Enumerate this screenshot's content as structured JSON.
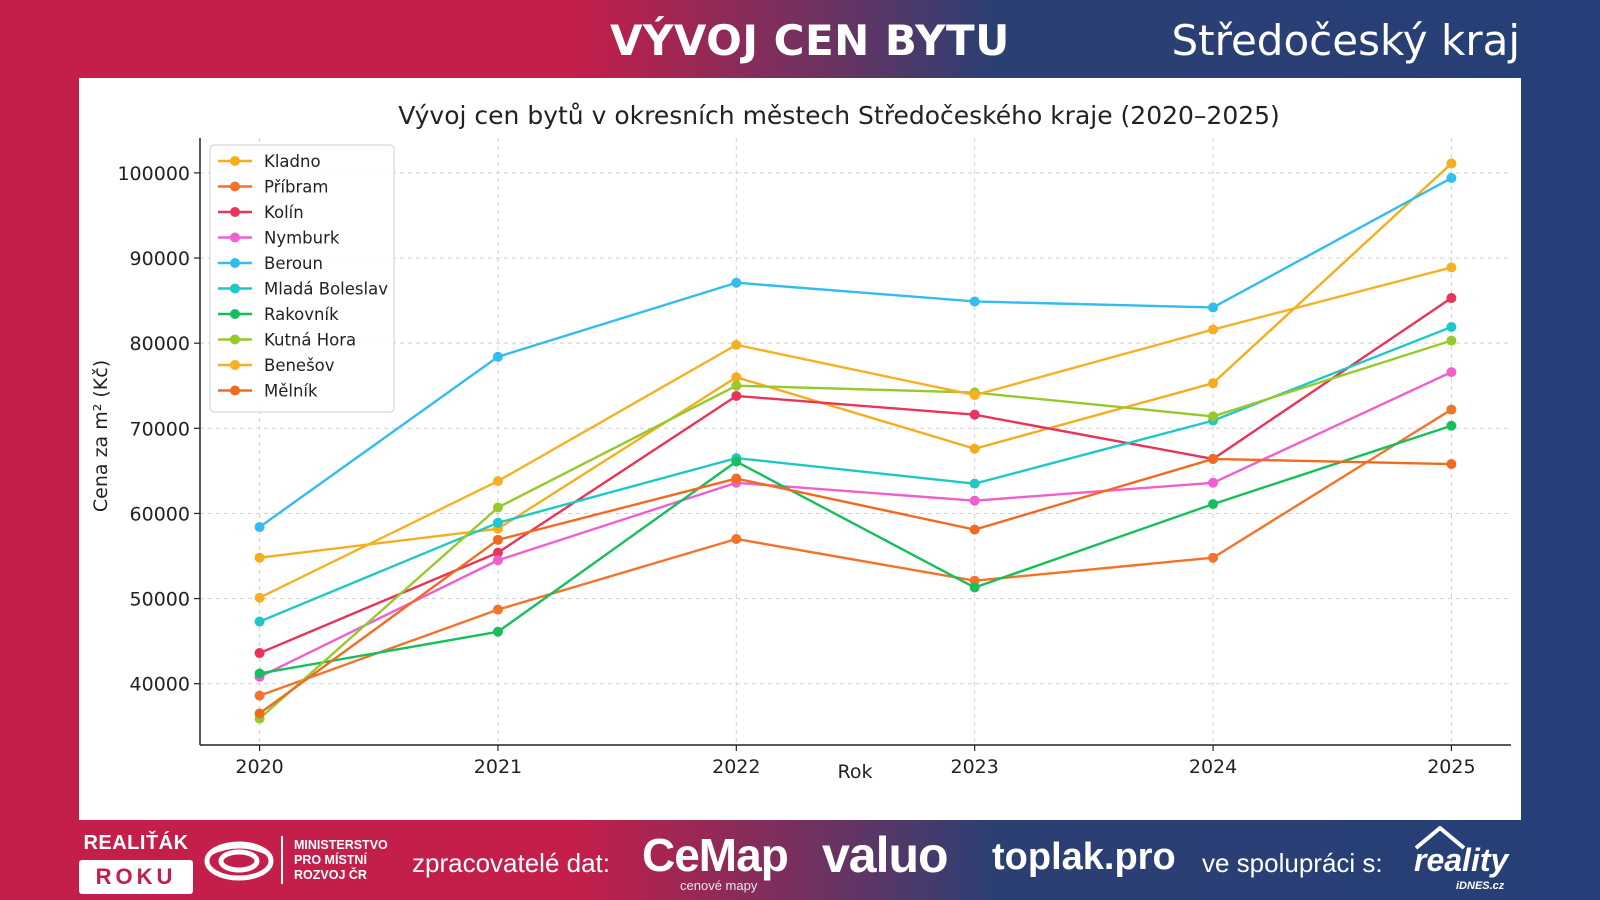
{
  "header": {
    "title": "VÝVOJ CEN BYTU",
    "region": "Středočeský kraj"
  },
  "footer": {
    "badge_top": "REALIŤÁK",
    "badge_bottom": "ROKU",
    "ministry_lines": [
      "MINISTERSTVO",
      "PRO MÍSTNÍ",
      "ROZVOJ ČR"
    ],
    "processors_label": "zpracovatelé dat:",
    "cemap": "CeMap",
    "cemap_sub": "cenové mapy",
    "valuo": "valuo",
    "toplak": "toplak.pro",
    "cooperation_label": "ve spolupráci s:",
    "reality": "reality",
    "idnes": "iDNES.cz"
  },
  "chart_data": {
    "type": "line",
    "title": "Vývoj cen bytů v okresních městech Středočeského kraje (2020–2025)",
    "xlabel": "Rok",
    "ylabel": "Cena za m² (Kč)",
    "x": [
      2020,
      2021,
      2022,
      2023,
      2024,
      2025
    ],
    "xticks": [
      "2020",
      "2021",
      "2022",
      "2023",
      "2024",
      "2025"
    ],
    "yticks": [
      40000,
      50000,
      60000,
      70000,
      80000,
      90000,
      100000
    ],
    "ytick_labels": [
      "40000",
      "50000",
      "60000",
      "70000",
      "80000",
      "90000",
      "100000"
    ],
    "xlim": [
      2019.75,
      2025.25
    ],
    "ylim": [
      32800,
      104100
    ],
    "grid": true,
    "legend_position": "top-left",
    "series": [
      {
        "name": "Kladno",
        "color": "#f5ad1e",
        "values": [
          54800,
          58200,
          76000,
          67600,
          75300,
          101100
        ]
      },
      {
        "name": "Příbram",
        "color": "#f27329",
        "values": [
          38600,
          48700,
          57000,
          52100,
          54800,
          72200
        ]
      },
      {
        "name": "Kolín",
        "color": "#e8345a",
        "values": [
          43600,
          55400,
          73800,
          71600,
          66400,
          85300
        ]
      },
      {
        "name": "Nymburk",
        "color": "#ef5fd0",
        "values": [
          40800,
          54500,
          63600,
          61500,
          63600,
          76600
        ]
      },
      {
        "name": "Beroun",
        "color": "#33bcf0",
        "values": [
          58400,
          78400,
          87100,
          84900,
          84200,
          99400
        ]
      },
      {
        "name": "Mladá Boleslav",
        "color": "#1ec8c6",
        "values": [
          47300,
          58900,
          66500,
          63500,
          70900,
          81900
        ]
      },
      {
        "name": "Rakovník",
        "color": "#17bf5c",
        "values": [
          41200,
          46100,
          66100,
          51300,
          61100,
          70300
        ]
      },
      {
        "name": "Kutná Hora",
        "color": "#97c92b",
        "values": [
          35900,
          60700,
          75000,
          74200,
          71400,
          80300
        ]
      },
      {
        "name": "Benešov",
        "color": "#f7b026",
        "values": [
          50100,
          63800,
          79800,
          73900,
          81600,
          88900
        ]
      },
      {
        "name": "Mělník",
        "color": "#f06b22",
        "values": [
          36500,
          56900,
          64100,
          58100,
          66400,
          65800
        ]
      }
    ]
  }
}
